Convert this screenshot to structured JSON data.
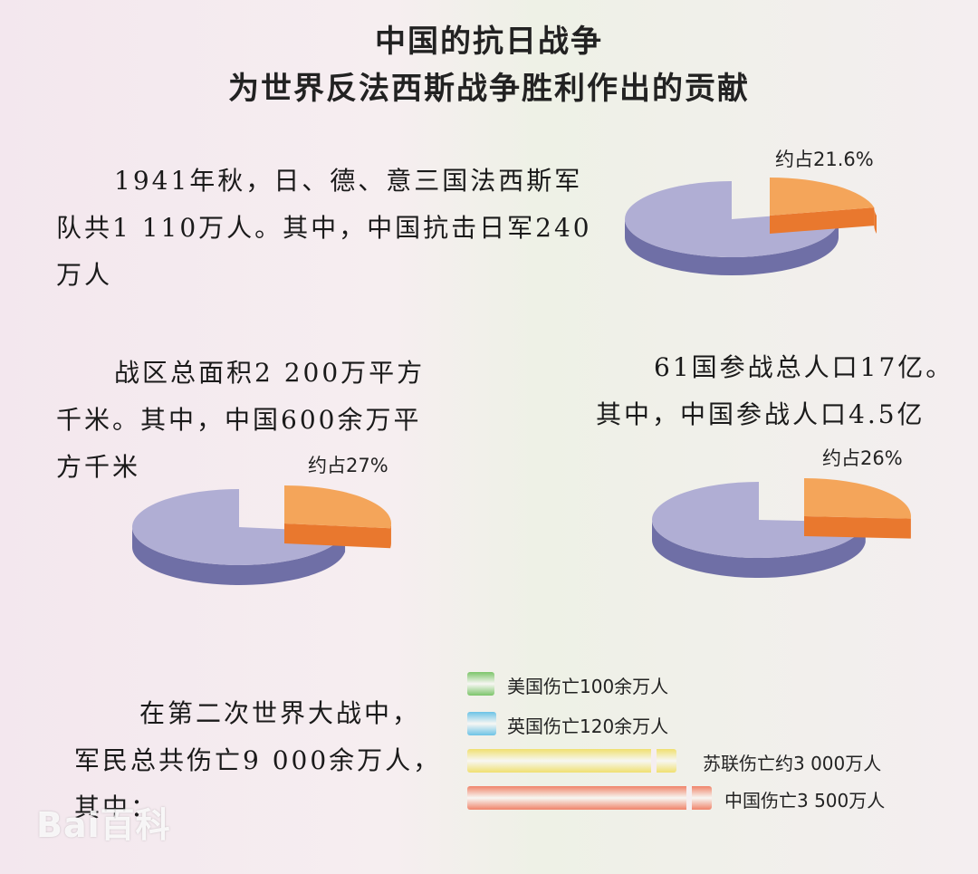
{
  "title_line1": "中国的抗日战争",
  "title_line2": "为世界反法西斯战争胜利作出的贡献",
  "blocks": {
    "troops": [
      "1941年秋，日、德、意三国法西斯军",
      "队共1 110万人。其中，中国抗击日军240",
      "万人"
    ],
    "area": [
      "战区总面积2 200万平方",
      "千米。其中，中国600余万平",
      "方千米"
    ],
    "population": [
      "61国参战总人口17亿。",
      "其中，中国参战人口4.5亿"
    ],
    "casualties": [
      "在第二次世界大战中，",
      "军民总共伤亡9 000余万人，",
      "其中："
    ]
  },
  "logo_text": "Bai百科",
  "colors": {
    "slice": "#f4a55a",
    "slice_side": "#e9782e",
    "rest": "#b0aed4",
    "rest_side": "#6f6fa6",
    "us": "#7cc56a",
    "uk": "#6cc3e6",
    "ussr": "#f0e070",
    "china": "#f0846a"
  },
  "chart_data": [
    {
      "type": "pie",
      "categories": [
        "中国",
        ""
      ],
      "values": [
        21.6,
        78.4
      ],
      "label": "约占21.6%"
    },
    {
      "type": "pie",
      "categories": [
        "中国",
        ""
      ],
      "values": [
        27,
        73
      ],
      "label": "约占27%"
    },
    {
      "type": "pie",
      "categories": [
        "中国",
        ""
      ],
      "values": [
        26,
        74
      ],
      "label": "约占26%"
    },
    {
      "type": "bar",
      "categories": [
        "美国伤亡100余万人",
        "英国伤亡120余万人",
        "苏联伤亡约3 000万人",
        "中国伤亡3 500万人"
      ],
      "values": [
        100,
        120,
        3000,
        3500
      ],
      "unit": "万人"
    }
  ]
}
